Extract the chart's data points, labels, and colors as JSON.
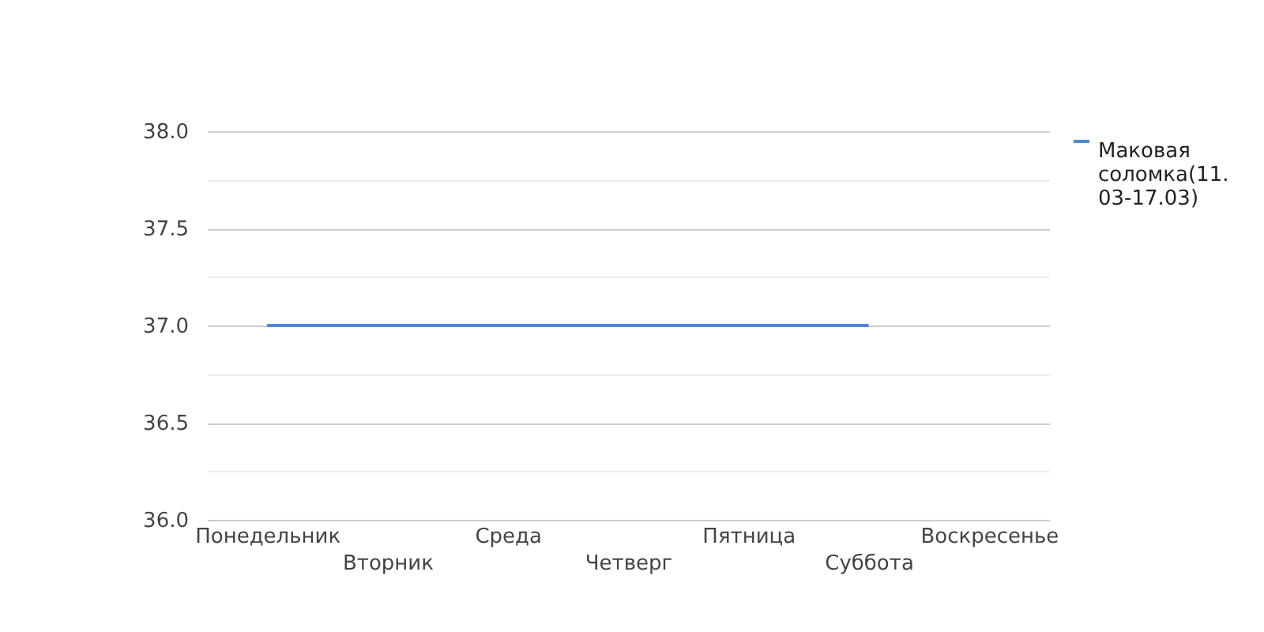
{
  "chart_data": {
    "type": "line",
    "categories": [
      "Понедельник",
      "Вторник",
      "Среда",
      "Четверг",
      "Пятница",
      "Суббота",
      "Воскресенье"
    ],
    "series": [
      {
        "name": "Маковая соломка(11.03-17.03)",
        "color": "#4a86e8",
        "values": [
          37.0,
          37.0,
          37.0,
          37.0,
          37.0,
          37.0,
          null
        ]
      }
    ],
    "ylim": [
      36,
      38
    ],
    "yticks": [
      {
        "value": 36,
        "label": "36.0"
      },
      {
        "value": 36.25,
        "label": null
      },
      36.5,
      {
        "value": 36.75,
        "label": null
      },
      {
        "value": 37,
        "label": "37.0"
      },
      {
        "value": 37.25,
        "label": null
      },
      37.5,
      {
        "value": 37.75,
        "label": null
      },
      {
        "value": 38,
        "label": "38.0"
      }
    ],
    "grid": "y",
    "legend": "top right",
    "marker": "none"
  }
}
